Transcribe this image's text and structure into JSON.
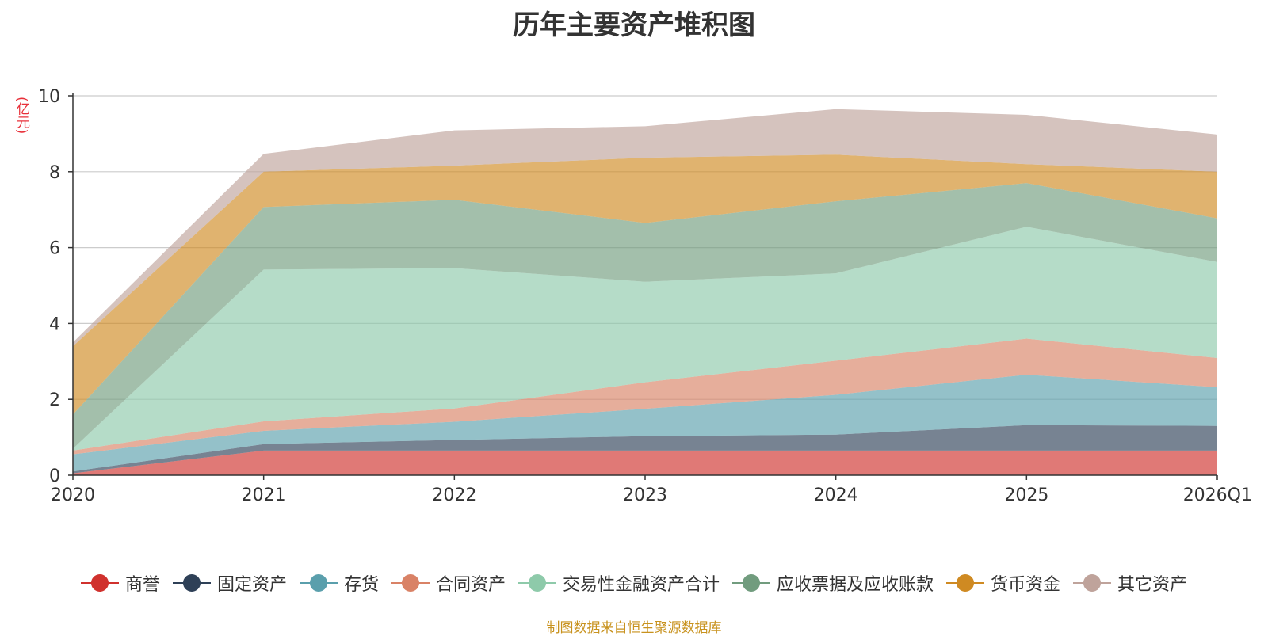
{
  "chart_data": {
    "type": "area",
    "stacked": true,
    "title": "历年主要资产堆积图",
    "ylabel": "(亿元)",
    "xlabel": "",
    "categories": [
      "2020",
      "2021",
      "2022",
      "2023",
      "2024",
      "2025",
      "2026Q1"
    ],
    "ylim": [
      0,
      10
    ],
    "yticks": [
      "0",
      "2",
      "4",
      "6",
      "8",
      "10"
    ],
    "grid": true,
    "legend_position": "bottom",
    "series": [
      {
        "name": "商誉",
        "color": "#d0312d",
        "values": [
          0.05,
          0.65,
          0.65,
          0.65,
          0.65,
          0.65,
          0.65
        ]
      },
      {
        "name": "固定资产",
        "color": "#2e4057",
        "values": [
          0.05,
          0.17,
          0.28,
          0.38,
          0.42,
          0.67,
          0.65
        ]
      },
      {
        "name": "存货",
        "color": "#5a9fac",
        "values": [
          0.45,
          0.35,
          0.48,
          0.72,
          1.05,
          1.33,
          1.02
        ]
      },
      {
        "name": "合同资产",
        "color": "#d98266",
        "values": [
          0.1,
          0.25,
          0.35,
          0.7,
          0.9,
          0.95,
          0.77
        ]
      },
      {
        "name": "交易性金融资产合计",
        "color": "#8ecaaa",
        "values": [
          0.05,
          4.0,
          3.7,
          2.65,
          2.3,
          2.95,
          2.53
        ]
      },
      {
        "name": "应收票据及应收账款",
        "color": "#719c7e",
        "values": [
          0.9,
          1.65,
          1.8,
          1.55,
          1.9,
          1.15,
          1.15
        ]
      },
      {
        "name": "货币资金",
        "color": "#cf8a22",
        "values": [
          1.8,
          0.93,
          0.9,
          1.72,
          1.23,
          0.5,
          1.23
        ]
      },
      {
        "name": "其它资产",
        "color": "#bfa39b",
        "values": [
          0.1,
          0.47,
          0.93,
          0.83,
          1.2,
          1.3,
          0.98
        ]
      }
    ],
    "source": "制图数据来自恒生聚源数据库"
  }
}
